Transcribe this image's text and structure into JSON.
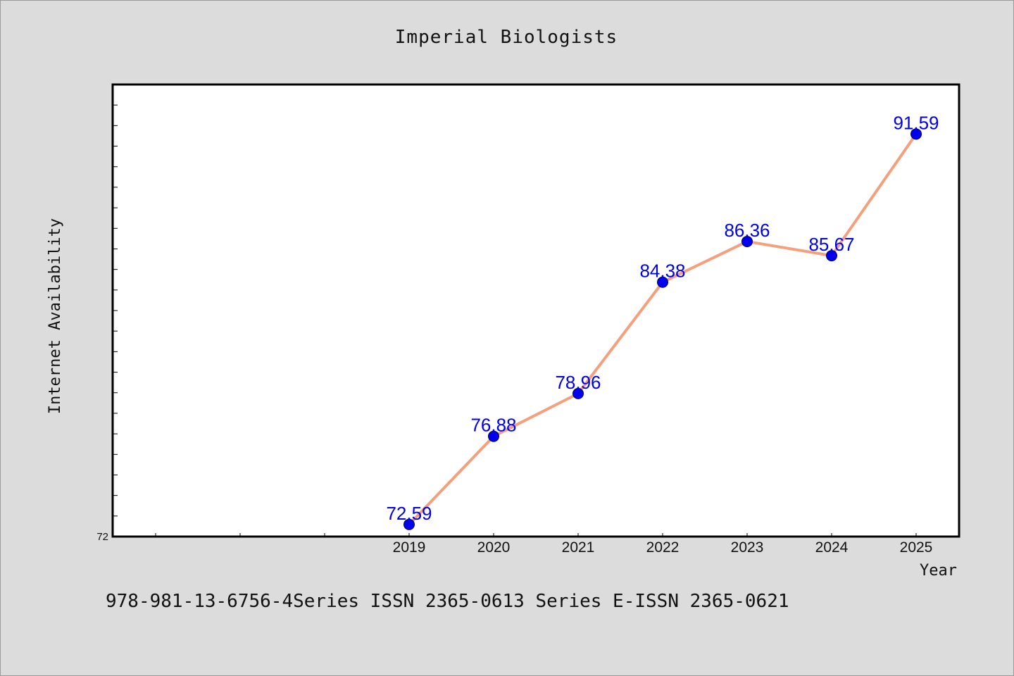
{
  "chart_data": {
    "type": "line",
    "title": "Imperial Biologists",
    "xlabel": "Year",
    "ylabel": "Internet Availability",
    "x": [
      "2019",
      "2020",
      "2021",
      "2022",
      "2023",
      "2024",
      "2025"
    ],
    "series": [
      {
        "values": [
          72.59,
          76.88,
          78.96,
          84.38,
          86.36,
          85.67,
          91.59
        ],
        "line_color": "#f4a07c",
        "marker_color": "#0000ee",
        "label_color": "#0000ee"
      }
    ],
    "data_labels": [
      "72.59",
      "76.88",
      "78.96",
      "84.38",
      "86.36",
      "85.67",
      "91.59"
    ],
    "y_tick_labels": [
      "72"
    ],
    "ylim": [
      72,
      94
    ],
    "grid": false
  },
  "footnote": "978-981-13-6756-4Series ISSN 2365-0613 Series E-ISSN 2365-0621",
  "colors": {
    "figure_background": "#dcdcdc",
    "plot_background": "#ffffff",
    "axis": "#000000"
  }
}
